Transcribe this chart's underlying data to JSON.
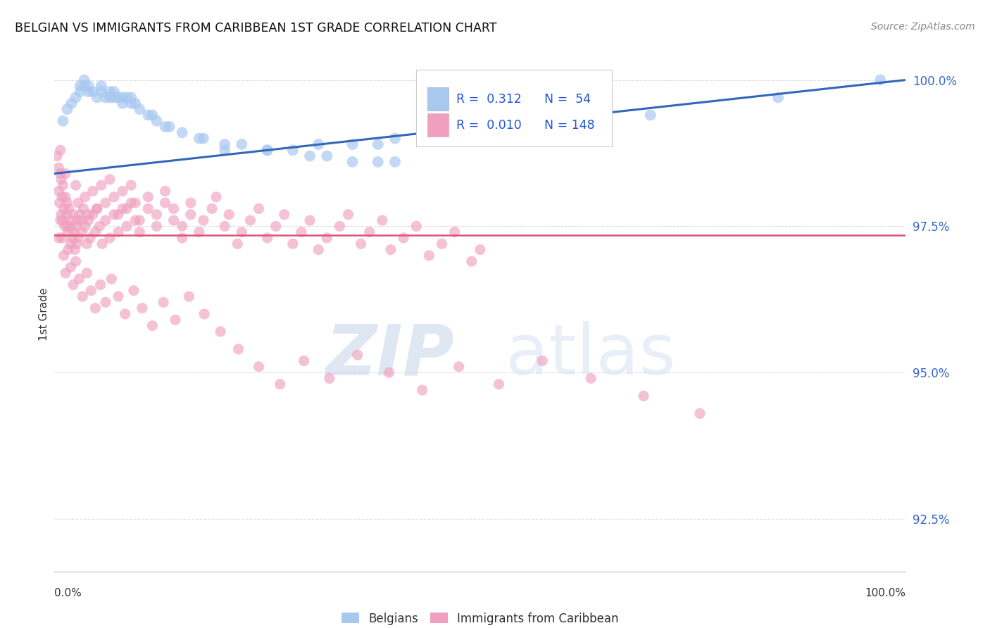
{
  "title": "BELGIAN VS IMMIGRANTS FROM CARIBBEAN 1ST GRADE CORRELATION CHART",
  "source": "Source: ZipAtlas.com",
  "ylabel": "1st Grade",
  "ytick_labels": [
    "92.5%",
    "95.0%",
    "97.5%",
    "100.0%"
  ],
  "ytick_values": [
    0.925,
    0.95,
    0.975,
    1.0
  ],
  "blue_color": "#A8C8F0",
  "pink_color": "#F0A0BE",
  "trend_blue_color": "#3366BB",
  "trend_pink_color": "#DD5577",
  "legend_text_color": "#2255DD",
  "blue_dots_x": [
    0.01,
    0.015,
    0.02,
    0.025,
    0.03,
    0.03,
    0.035,
    0.035,
    0.04,
    0.04,
    0.045,
    0.05,
    0.055,
    0.055,
    0.06,
    0.065,
    0.065,
    0.07,
    0.07,
    0.075,
    0.08,
    0.08,
    0.085,
    0.09,
    0.09,
    0.095,
    0.1,
    0.11,
    0.115,
    0.12,
    0.13,
    0.135,
    0.15,
    0.17,
    0.175,
    0.2,
    0.22,
    0.25,
    0.3,
    0.32,
    0.35,
    0.38,
    0.4,
    0.2,
    0.25,
    0.28,
    0.31,
    0.35,
    0.38,
    0.4,
    0.5,
    0.7,
    0.85,
    0.97
  ],
  "blue_dots_y": [
    0.993,
    0.995,
    0.996,
    0.997,
    0.998,
    0.999,
    0.999,
    1.0,
    0.998,
    0.999,
    0.998,
    0.997,
    0.998,
    0.999,
    0.997,
    0.997,
    0.998,
    0.997,
    0.998,
    0.997,
    0.996,
    0.997,
    0.997,
    0.996,
    0.997,
    0.996,
    0.995,
    0.994,
    0.994,
    0.993,
    0.992,
    0.992,
    0.991,
    0.99,
    0.99,
    0.989,
    0.989,
    0.988,
    0.987,
    0.987,
    0.986,
    0.986,
    0.986,
    0.988,
    0.988,
    0.988,
    0.989,
    0.989,
    0.989,
    0.99,
    0.991,
    0.994,
    0.997,
    1.0
  ],
  "pink_dots_x": [
    0.003,
    0.005,
    0.005,
    0.006,
    0.007,
    0.007,
    0.008,
    0.008,
    0.009,
    0.01,
    0.01,
    0.011,
    0.012,
    0.013,
    0.013,
    0.014,
    0.015,
    0.015,
    0.016,
    0.017,
    0.018,
    0.019,
    0.02,
    0.021,
    0.022,
    0.023,
    0.024,
    0.025,
    0.026,
    0.027,
    0.028,
    0.03,
    0.032,
    0.034,
    0.036,
    0.038,
    0.04,
    0.042,
    0.045,
    0.048,
    0.05,
    0.053,
    0.056,
    0.06,
    0.065,
    0.07,
    0.075,
    0.08,
    0.085,
    0.09,
    0.095,
    0.1,
    0.11,
    0.12,
    0.13,
    0.14,
    0.15,
    0.16,
    0.17,
    0.185,
    0.2,
    0.215,
    0.23,
    0.25,
    0.27,
    0.29,
    0.31,
    0.335,
    0.36,
    0.385,
    0.41,
    0.44,
    0.47,
    0.5,
    0.025,
    0.028,
    0.032,
    0.036,
    0.04,
    0.045,
    0.05,
    0.055,
    0.06,
    0.065,
    0.07,
    0.075,
    0.08,
    0.085,
    0.09,
    0.095,
    0.1,
    0.11,
    0.12,
    0.13,
    0.14,
    0.15,
    0.16,
    0.175,
    0.19,
    0.205,
    0.22,
    0.24,
    0.26,
    0.28,
    0.3,
    0.32,
    0.345,
    0.37,
    0.395,
    0.425,
    0.455,
    0.49,
    0.005,
    0.007,
    0.009,
    0.011,
    0.013,
    0.016,
    0.019,
    0.022,
    0.025,
    0.029,
    0.033,
    0.038,
    0.043,
    0.048,
    0.054,
    0.06,
    0.067,
    0.075,
    0.083,
    0.093,
    0.103,
    0.115,
    0.128,
    0.142,
    0.158,
    0.176,
    0.195,
    0.216,
    0.24,
    0.265,
    0.293,
    0.323,
    0.356,
    0.393,
    0.432,
    0.475,
    0.522,
    0.573,
    0.63,
    0.692,
    0.758
  ],
  "pink_dots_y": [
    0.987,
    0.981,
    0.985,
    0.979,
    0.984,
    0.988,
    0.977,
    0.983,
    0.98,
    0.976,
    0.982,
    0.978,
    0.975,
    0.98,
    0.984,
    0.977,
    0.975,
    0.979,
    0.974,
    0.978,
    0.975,
    0.972,
    0.976,
    0.973,
    0.977,
    0.974,
    0.971,
    0.975,
    0.972,
    0.976,
    0.973,
    0.977,
    0.974,
    0.978,
    0.975,
    0.972,
    0.976,
    0.973,
    0.977,
    0.974,
    0.978,
    0.975,
    0.972,
    0.976,
    0.973,
    0.977,
    0.974,
    0.978,
    0.975,
    0.979,
    0.976,
    0.974,
    0.978,
    0.975,
    0.979,
    0.976,
    0.973,
    0.977,
    0.974,
    0.978,
    0.975,
    0.972,
    0.976,
    0.973,
    0.977,
    0.974,
    0.971,
    0.975,
    0.972,
    0.976,
    0.973,
    0.97,
    0.974,
    0.971,
    0.982,
    0.979,
    0.976,
    0.98,
    0.977,
    0.981,
    0.978,
    0.982,
    0.979,
    0.983,
    0.98,
    0.977,
    0.981,
    0.978,
    0.982,
    0.979,
    0.976,
    0.98,
    0.977,
    0.981,
    0.978,
    0.975,
    0.979,
    0.976,
    0.98,
    0.977,
    0.974,
    0.978,
    0.975,
    0.972,
    0.976,
    0.973,
    0.977,
    0.974,
    0.971,
    0.975,
    0.972,
    0.969,
    0.973,
    0.976,
    0.973,
    0.97,
    0.967,
    0.971,
    0.968,
    0.965,
    0.969,
    0.966,
    0.963,
    0.967,
    0.964,
    0.961,
    0.965,
    0.962,
    0.966,
    0.963,
    0.96,
    0.964,
    0.961,
    0.958,
    0.962,
    0.959,
    0.963,
    0.96,
    0.957,
    0.954,
    0.951,
    0.948,
    0.952,
    0.949,
    0.953,
    0.95,
    0.947,
    0.951,
    0.948,
    0.952,
    0.949,
    0.946,
    0.943
  ],
  "xlim": [
    0.0,
    1.0
  ],
  "ylim": [
    0.916,
    1.004
  ],
  "trend_blue_x0": 0.0,
  "trend_blue_y0": 0.984,
  "trend_blue_x1": 1.0,
  "trend_blue_y1": 1.0,
  "trend_pink_y": 0.9735,
  "grid_color": "#DDDDDD",
  "spine_color": "#BBBBBB",
  "tick_label_color": "#3366CC",
  "bottom_label_color": "#333333",
  "watermark_zip_color": "#B8CCE4",
  "watermark_atlas_color": "#C8D8EE"
}
